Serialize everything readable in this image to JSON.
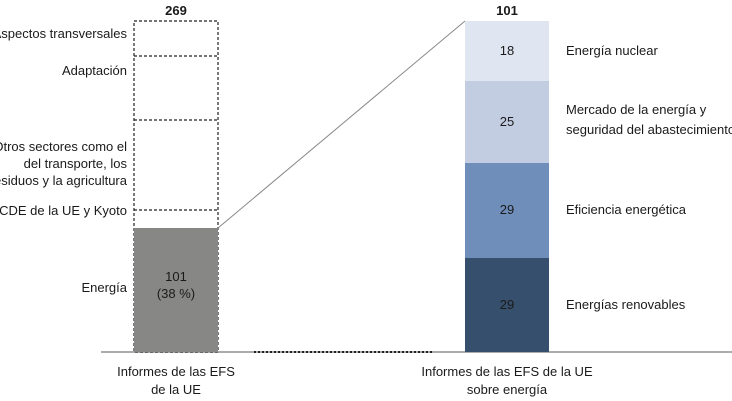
{
  "chart_data": {
    "type": "bar",
    "bars": [
      {
        "category": "Informes de las EFS de la UE",
        "total": 269,
        "segments": [
          {
            "name": "Energía",
            "value": 101,
            "label": "101",
            "sublabel": "(38 %)",
            "color": "#878886"
          },
          {
            "name": "RCDE de la UE y Kyoto",
            "value": 14,
            "color": "#ffffff"
          },
          {
            "name": "Otros sectores como el del transporte, los residuos y la agricultura",
            "value": 69,
            "color": "#ffffff"
          },
          {
            "name": "Adaptación",
            "value": 49,
            "color": "#ffffff"
          },
          {
            "name": "Aspectos transversales",
            "value": 36,
            "color": "#ffffff"
          }
        ]
      },
      {
        "category": "Informes de las EFS de la UE sobre energía",
        "total": 101,
        "segments": [
          {
            "name": "Energías renovables",
            "value": 29,
            "label": "29",
            "color": "#364f6c"
          },
          {
            "name": "Eficiencia energética",
            "value": 29,
            "label": "29",
            "color": "#6f8fba"
          },
          {
            "name": "Mercado de la energía y seguridad del abastecimiento",
            "value": 25,
            "label": "25",
            "color": "#c3cde2"
          },
          {
            "name": "Energía nuclear",
            "value": 18,
            "label": "18",
            "color": "#dfe5f1"
          }
        ]
      }
    ]
  },
  "labels": {
    "left_total": "269",
    "right_total": "101",
    "left_category_line1": "Informes de las EFS",
    "left_category_line2": "de la UE",
    "right_category_line1": "Informes de las EFS de la UE",
    "right_category_line2": "sobre energía",
    "left_segments": [
      {
        "lines": [
          "Aspectos transversales"
        ]
      },
      {
        "lines": [
          "Adaptación"
        ]
      },
      {
        "lines": [
          "Otros sectores como el",
          "del transporte, los",
          "residuos y la agricultura"
        ]
      },
      {
        "lines": [
          "RCDE de la UE y Kyoto"
        ]
      },
      {
        "lines": [
          "Energía"
        ]
      }
    ],
    "right_segments": [
      {
        "lines": [
          "Energía nuclear"
        ]
      },
      {
        "lines": [
          "Mercado de la energía y",
          "seguridad del abastecimiento"
        ]
      },
      {
        "lines": [
          "Eficiencia energética"
        ]
      },
      {
        "lines": [
          "Energías renovables"
        ]
      }
    ],
    "energy_value": "101",
    "energy_percent": "(38 %)",
    "right_values": [
      "18",
      "25",
      "29",
      "29"
    ]
  }
}
